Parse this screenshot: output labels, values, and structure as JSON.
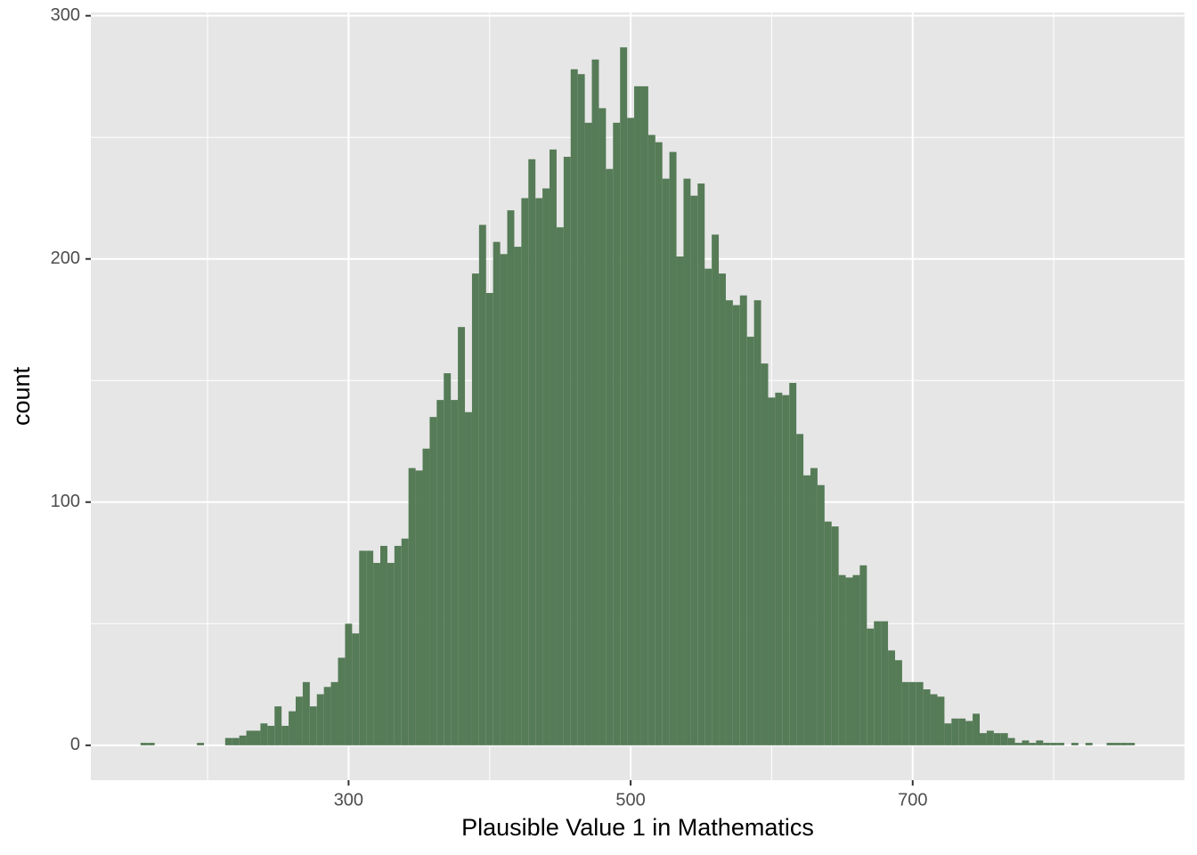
{
  "chart_data": {
    "type": "histogram",
    "xlabel": "Plausible Value 1 in Mathematics",
    "ylabel": "count",
    "color": "#567b57",
    "bins": [
      152.5,
      157.5,
      162.5,
      167.5,
      172.5,
      177.5,
      182.5,
      187.5,
      192.5,
      197.5,
      202.5,
      207.5,
      212.5,
      217.5,
      222.5,
      227.5,
      232.5,
      237.5,
      242.5,
      247.5,
      252.5,
      257.5,
      262.5,
      267.5,
      272.5,
      277.5,
      282.5,
      287.5,
      292.5,
      297.5,
      302.5,
      307.5,
      312.5,
      317.5,
      322.5,
      327.5,
      332.5,
      337.5,
      342.5,
      347.5,
      352.5,
      357.5,
      362.5,
      367.5,
      372.5,
      377.5,
      382.5,
      387.5,
      392.5,
      397.5,
      402.5,
      407.5,
      412.5,
      417.5,
      422.5,
      427.5,
      432.5,
      437.5,
      442.5,
      447.5,
      452.5,
      457.5,
      462.5,
      467.5,
      472.5,
      477.5,
      482.5,
      487.5,
      492.5,
      497.5,
      502.5,
      507.5,
      512.5,
      517.5,
      522.5,
      527.5,
      532.5,
      537.5,
      542.5,
      547.5,
      552.5,
      557.5,
      562.5,
      567.5,
      572.5,
      577.5,
      582.5,
      587.5,
      592.5,
      597.5,
      602.5,
      607.5,
      612.5,
      617.5,
      622.5,
      627.5,
      632.5,
      637.5,
      642.5,
      647.5,
      652.5,
      657.5,
      662.5,
      667.5,
      672.5,
      677.5,
      682.5,
      687.5,
      692.5,
      697.5,
      702.5,
      707.5,
      712.5,
      717.5,
      722.5,
      727.5,
      732.5,
      737.5,
      742.5,
      747.5,
      752.5,
      757.5,
      762.5,
      767.5,
      772.5,
      777.5,
      782.5,
      787.5,
      792.5,
      797.5,
      802.5,
      807.5,
      812.5,
      817.5,
      822.5,
      827.5,
      832.5,
      837.5,
      842.5,
      847.5,
      852.5,
      857.5
    ],
    "values": [
      1,
      1,
      0,
      0,
      0,
      0,
      0,
      0,
      1,
      0,
      0,
      0,
      3,
      3,
      4,
      6,
      6,
      9,
      8,
      16,
      8,
      14,
      20,
      26,
      16,
      21,
      24,
      26,
      36,
      50,
      46,
      80,
      80,
      75,
      82,
      75,
      82,
      85,
      114,
      113,
      122,
      135,
      142,
      153,
      142,
      172,
      137,
      194,
      214,
      186,
      207,
      202,
      220,
      205,
      225,
      241,
      225,
      229,
      245,
      213,
      242,
      278,
      276,
      256,
      282,
      262,
      237,
      256,
      287,
      258,
      271,
      271,
      251,
      248,
      233,
      244,
      201,
      233,
      226,
      231,
      196,
      210,
      194,
      183,
      181,
      185,
      168,
      183,
      157,
      143,
      145,
      144,
      149,
      128,
      111,
      114,
      107,
      92,
      90,
      70,
      69,
      70,
      74,
      48,
      51,
      51,
      39,
      35,
      26,
      26,
      26,
      23,
      21,
      20,
      9,
      11,
      11,
      10,
      13,
      5,
      6,
      5,
      5,
      3,
      1,
      2,
      1,
      2,
      1,
      1,
      1,
      0,
      1,
      0,
      1,
      0,
      0,
      1,
      1,
      1,
      1
    ],
    "xlim": [
      117.25,
      892.75
    ],
    "ylim": [
      -14.35,
      301.35
    ],
    "xticks": [
      300,
      500,
      700
    ],
    "yticks": [
      0,
      100,
      200,
      300
    ],
    "xminor": [
      200,
      400,
      600,
      800
    ],
    "yminor": [
      50,
      150,
      250
    ],
    "grid": true
  }
}
